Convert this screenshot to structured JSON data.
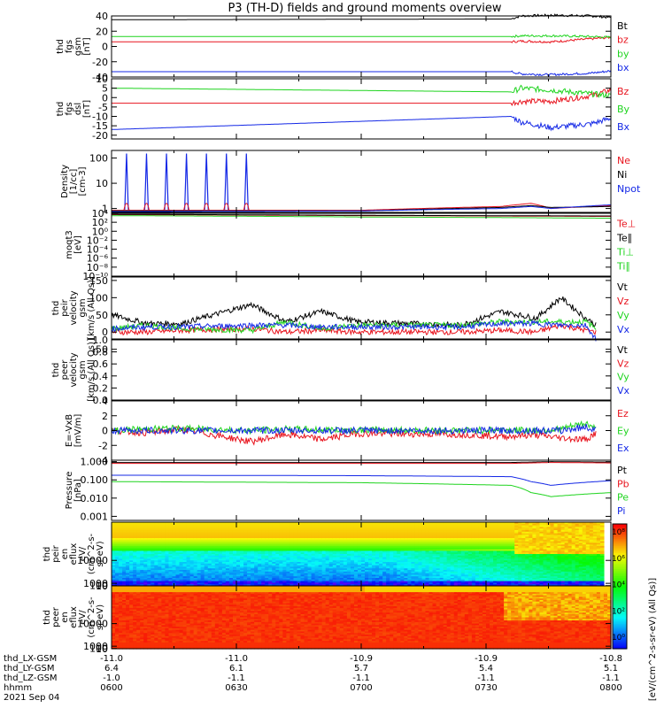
{
  "title": "P3 (TH-D) fields and ground moments overview",
  "colors": {
    "black": "#000000",
    "red": "#e8141e",
    "green": "#1fd41f",
    "blue": "#1428e6"
  },
  "chart_data": [
    {
      "type": "line",
      "id": "bgsm",
      "ylabel": [
        "thd",
        "fgs",
        "gsm",
        "[nT]"
      ],
      "ylim": [
        -40,
        40
      ],
      "yticks": [
        40,
        20,
        0,
        -20,
        -40
      ],
      "legend": [
        {
          "name": "Bt",
          "color": "black"
        },
        {
          "name": "bz",
          "color": "red"
        },
        {
          "name": "by",
          "color": "green"
        },
        {
          "name": "bx",
          "color": "blue"
        }
      ],
      "x": [
        0,
        0.8,
        0.82,
        0.88,
        0.96,
        1
      ],
      "series": [
        {
          "name": "Bt",
          "values": [
            35,
            36,
            40,
            41,
            40,
            38
          ]
        },
        {
          "name": "bz",
          "values": [
            6,
            6,
            7,
            6,
            10,
            12
          ]
        },
        {
          "name": "by",
          "values": [
            13,
            13,
            14,
            14,
            13,
            12
          ]
        },
        {
          "name": "bx",
          "values": [
            -33,
            -33,
            -36,
            -37,
            -35,
            -32
          ]
        }
      ]
    },
    {
      "type": "line",
      "id": "bdsl",
      "ylabel": [
        "thd",
        "fgs",
        "dsl",
        "[nT]"
      ],
      "ylim": [
        -22,
        10
      ],
      "yticks": [
        10,
        5,
        0,
        -5,
        -10,
        -15,
        -20
      ],
      "legend": [
        {
          "name": "Bz",
          "color": "red"
        },
        {
          "name": "By",
          "color": "green"
        },
        {
          "name": "Bx",
          "color": "blue"
        }
      ],
      "x": [
        0,
        0.8,
        0.82,
        0.88,
        0.96,
        1
      ],
      "series": [
        {
          "name": "Bz",
          "values": [
            -3,
            -3,
            -2,
            -2,
            1,
            4
          ]
        },
        {
          "name": "By",
          "values": [
            5,
            3,
            5,
            4,
            2,
            1
          ]
        },
        {
          "name": "Bx",
          "values": [
            -17,
            -10,
            -13,
            -16,
            -14,
            -11
          ]
        }
      ]
    },
    {
      "type": "line",
      "id": "density",
      "log": true,
      "ylabel": [
        "Density",
        "[1/cc]",
        "[cm-3]"
      ],
      "ylim": [
        0.7,
        200
      ],
      "yticks": [
        100,
        10,
        1
      ],
      "ytick_labels": [
        "100",
        "10",
        "1"
      ],
      "legend": [
        {
          "name": "Ne",
          "color": "red"
        },
        {
          "name": "Ni",
          "color": "black"
        },
        {
          "name": "Npot",
          "color": "blue"
        },
        {
          "name": ""
        }
      ],
      "x": [
        0,
        0.5,
        0.78,
        0.84,
        0.88,
        1
      ],
      "series": [
        {
          "name": "Ne",
          "values": [
            0.85,
            0.85,
            1.2,
            1.6,
            1.0,
            1.3
          ]
        },
        {
          "name": "Ni",
          "values": [
            0.8,
            0.8,
            1.1,
            1.3,
            1.1,
            1.2
          ]
        },
        {
          "name": "Npot",
          "values": [
            0.75,
            0.8,
            1.0,
            1.2,
            1.0,
            1.4
          ]
        }
      ],
      "spikes": [
        0.03,
        0.07,
        0.11,
        0.15,
        0.19,
        0.23,
        0.27
      ],
      "spike_peak": 150
    },
    {
      "type": "line",
      "id": "temp",
      "log": true,
      "ylabel": [
        "moqt3",
        "[eV]"
      ],
      "ylim": [
        1e-10,
        10000
      ],
      "yticks": [
        10000,
        100,
        1,
        0.01,
        0.0001,
        1e-06,
        1e-08,
        1e-10
      ],
      "ytick_labels": [
        "10⁴",
        "10²",
        "10⁰",
        "10⁻²",
        "10⁻⁴",
        "10⁻⁶",
        "10⁻⁸",
        "10⁻¹⁰"
      ],
      "legend": [
        {
          "name": "Te⊥",
          "color": "red"
        },
        {
          "name": "Te∥",
          "color": "black"
        },
        {
          "name": "Ti⊥",
          "color": "green"
        },
        {
          "name": "Ti∥",
          "color": "green"
        }
      ],
      "x": [
        0,
        0.5,
        1
      ],
      "series": [
        {
          "name": "Te⊥",
          "values": [
            5000,
            3000,
            2000
          ]
        },
        {
          "name": "Te∥",
          "values": [
            6000,
            3500,
            2500
          ]
        },
        {
          "name": "Ti⊥",
          "values": [
            3000,
            1500,
            800
          ]
        }
      ]
    },
    {
      "type": "line",
      "id": "peirv",
      "ylabel": [
        "thd",
        "peir",
        "velocity",
        "gsm",
        "[km/s (All Qs)]"
      ],
      "ylim": [
        -20,
        160
      ],
      "yticks": [
        150,
        100,
        50,
        0,
        -50
      ],
      "legend": [
        {
          "name": "Vt",
          "color": "black"
        },
        {
          "name": "Vz",
          "color": "red"
        },
        {
          "name": "Vy",
          "color": "green"
        },
        {
          "name": "Vx",
          "color": "blue"
        }
      ],
      "x": [
        0,
        0.07,
        0.14,
        0.28,
        0.35,
        0.42,
        0.49,
        0.7,
        0.78,
        0.85,
        0.9,
        0.95,
        0.97
      ],
      "series": [
        {
          "name": "Vt",
          "values": [
            50,
            25,
            25,
            80,
            30,
            60,
            30,
            20,
            60,
            40,
            100,
            40,
            20
          ]
        },
        {
          "name": "Vz",
          "values": [
            0,
            0,
            5,
            10,
            0,
            5,
            0,
            0,
            5,
            0,
            20,
            5,
            0
          ]
        },
        {
          "name": "Vy",
          "values": [
            10,
            20,
            10,
            5,
            30,
            10,
            20,
            20,
            30,
            30,
            30,
            30,
            10
          ]
        },
        {
          "name": "Vx",
          "values": [
            10,
            15,
            15,
            20,
            20,
            15,
            15,
            15,
            25,
            25,
            20,
            20,
            -20
          ]
        }
      ]
    },
    {
      "type": "line",
      "id": "peerv",
      "ylabel": [
        "thd",
        "peer",
        "velocity",
        "gsm",
        "[km/s (All Qs)]"
      ],
      "ylim": [
        0,
        1
      ],
      "yticks": [
        1,
        0.8,
        0.6,
        0.4,
        0.2,
        0
      ],
      "ytick_labels": [
        "1.0",
        "0.8",
        "0.6",
        "0.4",
        "0.2",
        "0.0"
      ],
      "legend": [
        {
          "name": "Vt",
          "color": "black"
        },
        {
          "name": "Vz",
          "color": "red"
        },
        {
          "name": "Vy",
          "color": "green"
        },
        {
          "name": "Vx",
          "color": "blue"
        }
      ],
      "x": [
        0,
        1
      ],
      "series": []
    },
    {
      "type": "line",
      "id": "efield",
      "ylabel": [
        "E=-VxB",
        "[mV/m]"
      ],
      "ylim": [
        -4,
        4
      ],
      "yticks": [
        4,
        2,
        0,
        -2,
        -4
      ],
      "legend": [
        {
          "name": "Ez",
          "color": "red"
        },
        {
          "name": "Ey",
          "color": "green"
        },
        {
          "name": "Ex",
          "color": "blue"
        }
      ],
      "x": [
        0,
        0.07,
        0.14,
        0.28,
        0.35,
        0.42,
        0.49,
        0.7,
        0.78,
        0.85,
        0.9,
        0.95,
        0.97
      ],
      "series": [
        {
          "name": "Ez",
          "values": [
            0,
            -0.3,
            0.2,
            -1.5,
            -0.5,
            -1.2,
            -0.4,
            -0.5,
            -0.8,
            -0.6,
            -1,
            -1.2,
            -0.3
          ]
        },
        {
          "name": "Ey",
          "values": [
            0,
            0.2,
            0.3,
            0,
            0.2,
            0.1,
            0.1,
            0,
            0.1,
            0,
            0.2,
            1,
            0.2
          ]
        },
        {
          "name": "Ex",
          "values": [
            0,
            0,
            0,
            0,
            0,
            0,
            0,
            0,
            0,
            0,
            0,
            0.5,
            0
          ]
        }
      ]
    },
    {
      "type": "line",
      "id": "pressure",
      "log": true,
      "ylabel": [
        "Pressure",
        "[nPa]"
      ],
      "ylim": [
        0.0006,
        1.2
      ],
      "yticks": [
        1,
        0.1,
        0.01,
        0.001
      ],
      "ytick_labels": [
        "1.000",
        "0.100",
        "0.010",
        "0.001"
      ],
      "legend": [
        {
          "name": "Pt",
          "color": "black"
        },
        {
          "name": "Pb",
          "color": "red"
        },
        {
          "name": "Pe",
          "color": "green"
        },
        {
          "name": "Pi",
          "color": "blue"
        }
      ],
      "x": [
        0,
        0.5,
        0.8,
        0.84,
        0.88,
        1
      ],
      "series": [
        {
          "name": "Pt",
          "values": [
            0.9,
            0.9,
            0.9,
            0.95,
            1.0,
            0.95
          ]
        },
        {
          "name": "Pb",
          "values": [
            0.8,
            0.8,
            0.8,
            0.85,
            0.9,
            0.85
          ]
        },
        {
          "name": "Pe",
          "values": [
            0.08,
            0.07,
            0.05,
            0.02,
            0.012,
            0.02
          ]
        },
        {
          "name": "Pi",
          "values": [
            0.18,
            0.17,
            0.15,
            0.08,
            0.05,
            0.09
          ]
        }
      ]
    },
    {
      "type": "heatmap",
      "id": "peirspec",
      "ylabel": [
        "thd",
        "peir",
        "en",
        "eflux",
        "eV/",
        "(cm^2-s-",
        "sr-eV)"
      ],
      "ylim": [
        6,
        25000
      ],
      "yticks": [
        10000,
        1000,
        100,
        10
      ],
      "ytick_labels": [
        "10000",
        "1000",
        "100",
        "10"
      ]
    },
    {
      "type": "heatmap",
      "id": "peerspec",
      "ylabel": [
        "thd",
        "peer",
        "en",
        "eflux",
        "eV/",
        "(cm^2-s-",
        "sr-eV)"
      ],
      "ylim": [
        6,
        25000
      ],
      "yticks": [
        10000,
        1000,
        100,
        10
      ],
      "ytick_labels": [
        "10000",
        "1000",
        "100",
        "10"
      ]
    }
  ],
  "colorbar": {
    "label": "[eV/(cm^2-s-sr-eV) (All Qs)]",
    "ticks": [
      "10⁸",
      "10⁶",
      "10⁴",
      "10²",
      "10⁰"
    ]
  },
  "xaxis": {
    "rows": [
      {
        "label": "thd_LX-GSM",
        "values": [
          "-11.0",
          "-11.0",
          "-10.9",
          "-10.9",
          "-10.8"
        ]
      },
      {
        "label": "thd_LY-GSM",
        "values": [
          "6.4",
          "6.1",
          "5.7",
          "5.4",
          "5.1"
        ]
      },
      {
        "label": "thd_LZ-GSM",
        "values": [
          "-1.0",
          "-1.1",
          "-1.1",
          "-1.1",
          "-1.1"
        ]
      },
      {
        "label": "hhmm",
        "values": [
          "0600",
          "0630",
          "0700",
          "0730",
          "0800"
        ]
      }
    ],
    "date": "2021 Sep 04"
  }
}
